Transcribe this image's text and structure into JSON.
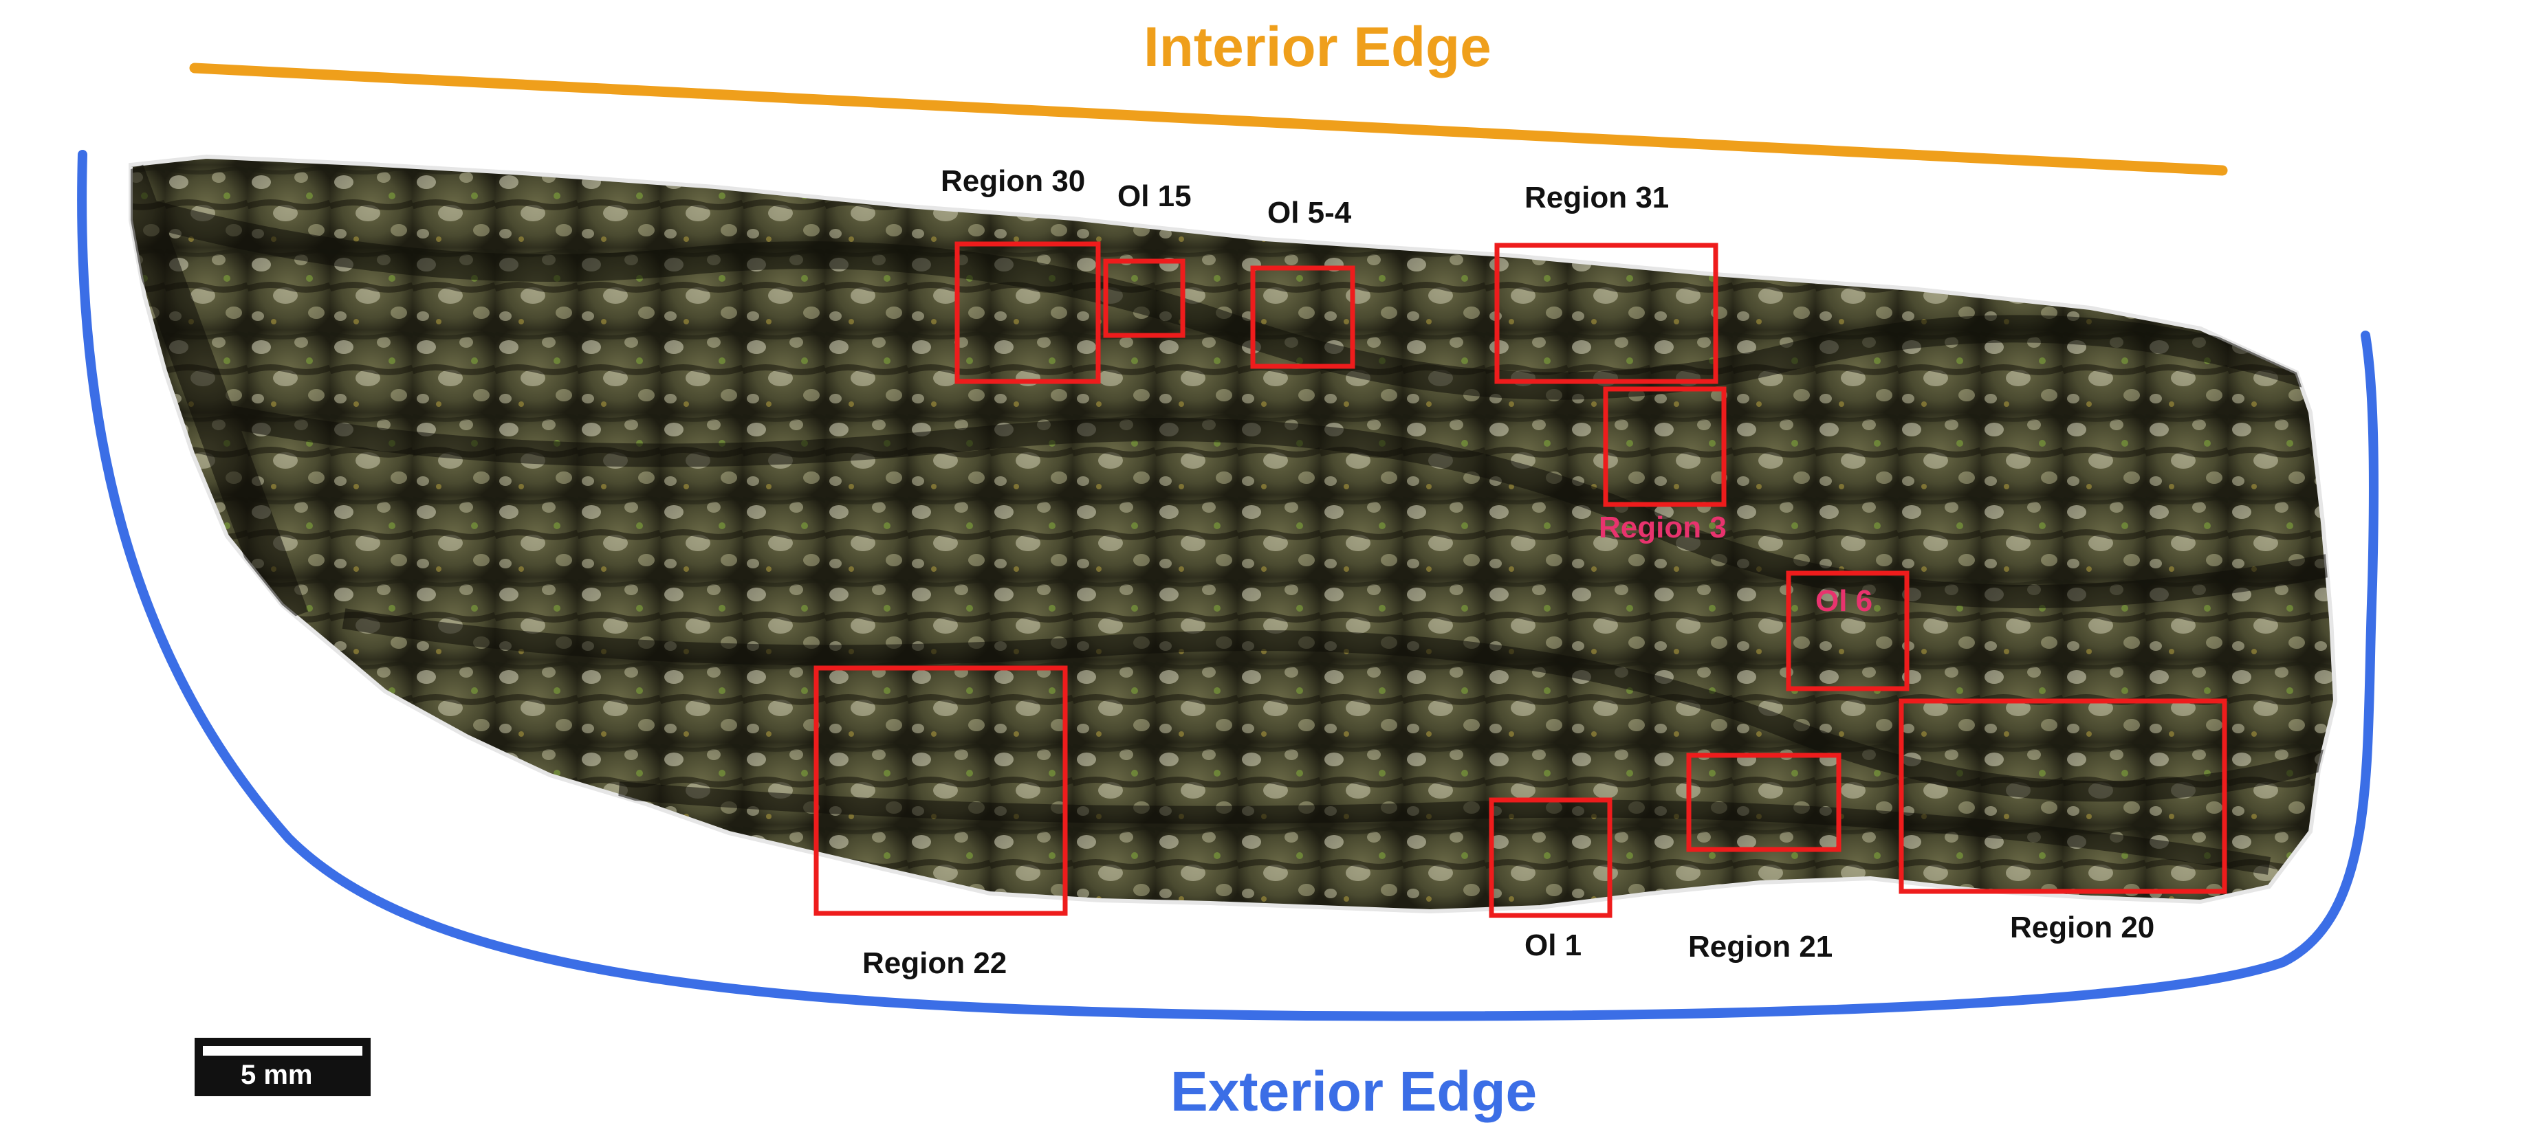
{
  "image": {
    "description_icon": "thin-section-micrograph",
    "interior_edge": {
      "label": "Interior Edge",
      "color": "#ef9f1b"
    },
    "exterior_edge": {
      "label": "Exterior Edge",
      "color": "#3b6ee6"
    },
    "box_color": "#ee1c1c",
    "label_color": "#111111",
    "highlight_label_color": "#e8336e",
    "regions": {
      "region30": "Region 30",
      "ol15": "Ol 15",
      "ol54": "Ol 5-4",
      "region31": "Region 31",
      "region3": "Region 3",
      "ol6": "Ol 6",
      "region22": "Region 22",
      "ol1": "Ol 1",
      "region21": "Region 21",
      "region20": "Region 20"
    },
    "scale_bar": {
      "label": "5 mm"
    }
  }
}
